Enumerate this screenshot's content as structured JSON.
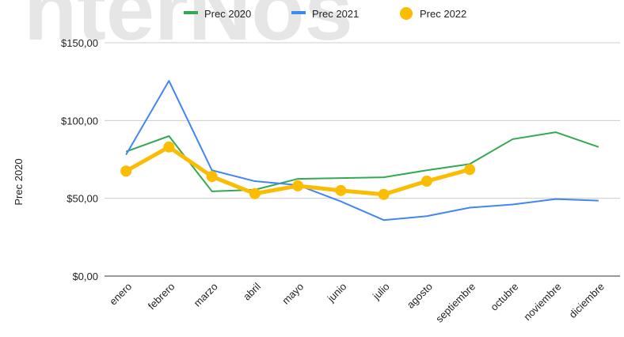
{
  "watermark": "nterNos",
  "chart_data": {
    "type": "line",
    "y_label": "Prec 2020",
    "categories": [
      "enero",
      "febrero",
      "marzo",
      "abril",
      "mayo",
      "junio",
      "julio",
      "agosto",
      "septiembre",
      "octubre",
      "noviembre",
      "diciembre"
    ],
    "series": [
      {
        "name": "Prec 2020",
        "color": "#34a853",
        "values": [
          80,
          90,
          54.5,
          55.5,
          62.5,
          63,
          63.5,
          68,
          72,
          88,
          92.5,
          83
        ]
      },
      {
        "name": "Prec 2021",
        "color": "#4285f4",
        "values": [
          78,
          125.5,
          68,
          61,
          58.5,
          48,
          36,
          38.5,
          44,
          46,
          49.5,
          48.5
        ]
      },
      {
        "name": "Prec 2022",
        "color": "#fbbc04",
        "values": [
          67.5,
          83,
          64,
          53,
          58,
          55,
          52.5,
          61,
          68.5,
          null,
          null,
          null
        ]
      }
    ],
    "ylim": [
      0,
      150
    ],
    "yticks": [
      {
        "value": 0,
        "label": "$0,00"
      },
      {
        "value": 50,
        "label": "$50,00"
      },
      {
        "value": 100,
        "label": "$100,00"
      },
      {
        "value": 150,
        "label": "$150,00"
      }
    ],
    "grid": true,
    "legend": "top"
  }
}
